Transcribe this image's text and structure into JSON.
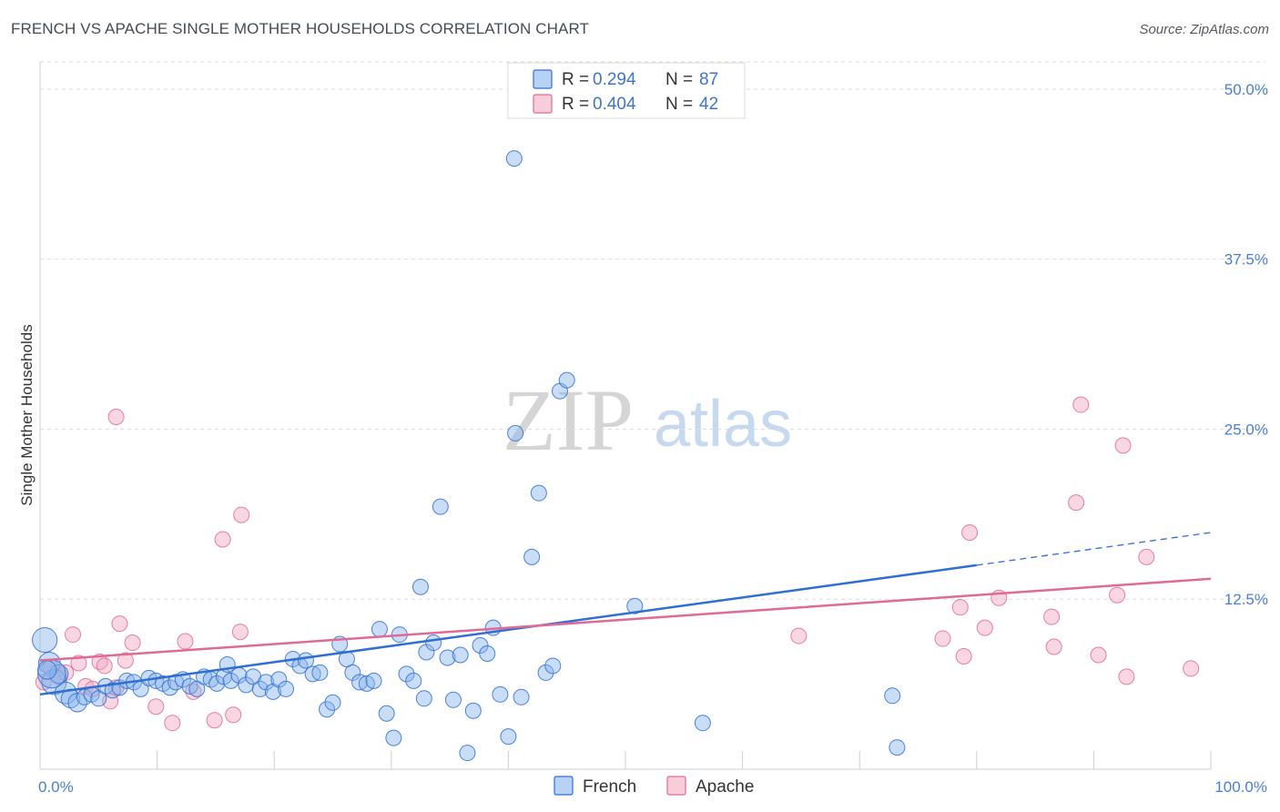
{
  "title": "FRENCH VS APACHE SINGLE MOTHER HOUSEHOLDS CORRELATION CHART",
  "source": "Source: ZipAtlas.com",
  "watermark": {
    "zip": "ZIP",
    "atlas": "atlas"
  },
  "colors": {
    "french": "#8ab4ea",
    "french_line": "#2f6fd1",
    "apache": "#f1a7bf",
    "apache_line": "#e06a96",
    "tick_text": "#4a7fcf"
  },
  "legend": {
    "french": {
      "r_label": "R =",
      "r_value": "0.294",
      "n_label": "N =",
      "n_value": "87"
    },
    "apache": {
      "r_label": "R =",
      "r_value": "0.404",
      "n_label": "N =",
      "n_value": "42"
    }
  },
  "bottom_legend": {
    "french": "French",
    "apache": "Apache"
  },
  "chart_data": {
    "type": "scatter",
    "title": "FRENCH VS APACHE SINGLE MOTHER HOUSEHOLDS CORRELATION CHART",
    "xlabel": "",
    "ylabel": "Single Mother Households",
    "xlim": [
      0,
      100
    ],
    "ylim": [
      0,
      52
    ],
    "x_tick_labels": [
      "0.0%",
      "100.0%"
    ],
    "y_ticks": [
      12.5,
      25.0,
      37.5,
      50.0
    ],
    "y_tick_labels": [
      "12.5%",
      "25.0%",
      "37.5%",
      "50.0%"
    ],
    "grid": true,
    "legend_position": "top-center",
    "series": [
      {
        "name": "French",
        "r": 0.294,
        "n": 87,
        "trend": {
          "x0": 0,
          "y0": 5.5,
          "x1": 80,
          "y1": 15.0,
          "dash_to_x": 100,
          "dash_to_y": 17.4
        },
        "points": [
          {
            "x": 0.4,
            "y": 9.5,
            "s": 1.6
          },
          {
            "x": 0.8,
            "y": 7.8,
            "s": 1.4
          },
          {
            "x": 1.2,
            "y": 6.4,
            "s": 1.6
          },
          {
            "x": 1.6,
            "y": 7.0,
            "s": 1.2
          },
          {
            "x": 2.2,
            "y": 5.6,
            "s": 1.4
          },
          {
            "x": 2.6,
            "y": 5.2,
            "s": 1.2
          },
          {
            "x": 3.2,
            "y": 4.9,
            "s": 1.2
          },
          {
            "x": 3.8,
            "y": 5.3,
            "s": 1.0
          },
          {
            "x": 4.4,
            "y": 5.5,
            "s": 1.0
          },
          {
            "x": 5.0,
            "y": 5.2,
            "s": 1.0
          },
          {
            "x": 5.6,
            "y": 6.1,
            "s": 1.0
          },
          {
            "x": 6.2,
            "y": 5.8,
            "s": 1.0
          },
          {
            "x": 6.8,
            "y": 6.0,
            "s": 1.0
          },
          {
            "x": 7.4,
            "y": 6.5,
            "s": 1.0
          },
          {
            "x": 8.0,
            "y": 6.4,
            "s": 1.0
          },
          {
            "x": 8.6,
            "y": 5.9,
            "s": 1.0
          },
          {
            "x": 9.3,
            "y": 6.7,
            "s": 1.0
          },
          {
            "x": 9.9,
            "y": 6.5,
            "s": 1.0
          },
          {
            "x": 10.5,
            "y": 6.3,
            "s": 1.0
          },
          {
            "x": 11.1,
            "y": 6.0,
            "s": 1.0
          },
          {
            "x": 11.6,
            "y": 6.4,
            "s": 1.0
          },
          {
            "x": 12.2,
            "y": 6.6,
            "s": 1.0
          },
          {
            "x": 12.8,
            "y": 6.1,
            "s": 1.0
          },
          {
            "x": 13.4,
            "y": 5.9,
            "s": 1.0
          },
          {
            "x": 14.0,
            "y": 6.8,
            "s": 1.0
          },
          {
            "x": 14.6,
            "y": 6.6,
            "s": 1.0
          },
          {
            "x": 15.1,
            "y": 6.3,
            "s": 1.0
          },
          {
            "x": 15.7,
            "y": 6.8,
            "s": 1.0
          },
          {
            "x": 16.3,
            "y": 6.5,
            "s": 1.0
          },
          {
            "x": 16.0,
            "y": 7.7,
            "s": 1.0
          },
          {
            "x": 17.0,
            "y": 6.9,
            "s": 1.0
          },
          {
            "x": 17.6,
            "y": 6.2,
            "s": 1.0
          },
          {
            "x": 18.2,
            "y": 6.8,
            "s": 1.0
          },
          {
            "x": 18.8,
            "y": 5.9,
            "s": 1.0
          },
          {
            "x": 19.3,
            "y": 6.4,
            "s": 1.0
          },
          {
            "x": 19.9,
            "y": 5.7,
            "s": 1.0
          },
          {
            "x": 20.4,
            "y": 6.6,
            "s": 1.0
          },
          {
            "x": 21.0,
            "y": 5.9,
            "s": 1.0
          },
          {
            "x": 21.6,
            "y": 8.1,
            "s": 1.0
          },
          {
            "x": 22.2,
            "y": 7.6,
            "s": 1.0
          },
          {
            "x": 22.7,
            "y": 8.0,
            "s": 1.0
          },
          {
            "x": 23.3,
            "y": 7.0,
            "s": 1.0
          },
          {
            "x": 23.9,
            "y": 7.1,
            "s": 1.0
          },
          {
            "x": 24.5,
            "y": 4.4,
            "s": 1.0
          },
          {
            "x": 25.0,
            "y": 4.9,
            "s": 1.0
          },
          {
            "x": 25.6,
            "y": 9.2,
            "s": 1.0
          },
          {
            "x": 26.2,
            "y": 8.1,
            "s": 1.0
          },
          {
            "x": 26.7,
            "y": 7.1,
            "s": 1.0
          },
          {
            "x": 27.3,
            "y": 6.4,
            "s": 1.0
          },
          {
            "x": 27.9,
            "y": 6.3,
            "s": 1.0
          },
          {
            "x": 28.5,
            "y": 6.5,
            "s": 1.0
          },
          {
            "x": 29.0,
            "y": 10.3,
            "s": 1.0
          },
          {
            "x": 29.6,
            "y": 4.1,
            "s": 1.0
          },
          {
            "x": 30.2,
            "y": 2.3,
            "s": 1.0
          },
          {
            "x": 30.7,
            "y": 9.9,
            "s": 1.0
          },
          {
            "x": 31.3,
            "y": 7.0,
            "s": 1.0
          },
          {
            "x": 31.9,
            "y": 6.5,
            "s": 1.0
          },
          {
            "x": 32.5,
            "y": 13.4,
            "s": 1.0
          },
          {
            "x": 33.0,
            "y": 8.6,
            "s": 1.0
          },
          {
            "x": 33.6,
            "y": 9.3,
            "s": 1.0
          },
          {
            "x": 32.8,
            "y": 5.2,
            "s": 1.0
          },
          {
            "x": 34.2,
            "y": 19.3,
            "s": 1.0
          },
          {
            "x": 34.8,
            "y": 8.2,
            "s": 1.0
          },
          {
            "x": 35.3,
            "y": 5.1,
            "s": 1.0
          },
          {
            "x": 35.9,
            "y": 8.4,
            "s": 1.0
          },
          {
            "x": 36.5,
            "y": 1.2,
            "s": 1.0
          },
          {
            "x": 37.0,
            "y": 4.3,
            "s": 1.0
          },
          {
            "x": 37.6,
            "y": 9.1,
            "s": 1.0
          },
          {
            "x": 38.2,
            "y": 8.5,
            "s": 1.0
          },
          {
            "x": 38.7,
            "y": 10.4,
            "s": 1.0
          },
          {
            "x": 39.3,
            "y": 5.5,
            "s": 1.0
          },
          {
            "x": 40.0,
            "y": 2.4,
            "s": 1.0
          },
          {
            "x": 40.6,
            "y": 24.7,
            "s": 1.0
          },
          {
            "x": 41.1,
            "y": 5.3,
            "s": 1.0
          },
          {
            "x": 42.0,
            "y": 15.6,
            "s": 1.0
          },
          {
            "x": 42.6,
            "y": 20.3,
            "s": 1.0
          },
          {
            "x": 43.2,
            "y": 7.1,
            "s": 1.0
          },
          {
            "x": 43.8,
            "y": 7.6,
            "s": 1.0
          },
          {
            "x": 44.4,
            "y": 27.8,
            "s": 1.0
          },
          {
            "x": 45.0,
            "y": 28.6,
            "s": 1.0
          },
          {
            "x": 40.5,
            "y": 44.9,
            "s": 1.0
          },
          {
            "x": 50.8,
            "y": 12.0,
            "s": 1.0
          },
          {
            "x": 56.6,
            "y": 3.4,
            "s": 1.0
          },
          {
            "x": 72.8,
            "y": 5.4,
            "s": 1.0
          },
          {
            "x": 73.2,
            "y": 1.6,
            "s": 1.0
          },
          {
            "x": 1.0,
            "y": 7.0,
            "s": 1.8
          },
          {
            "x": 0.6,
            "y": 7.3,
            "s": 1.2
          }
        ]
      },
      {
        "name": "Apache",
        "r": 0.404,
        "n": 42,
        "trend": {
          "x0": 0,
          "y0": 8.0,
          "x1": 100,
          "y1": 14.0
        },
        "points": [
          {
            "x": 0.3,
            "y": 6.4,
            "s": 1.0
          },
          {
            "x": 0.9,
            "y": 7.5,
            "s": 1.0
          },
          {
            "x": 1.6,
            "y": 6.8,
            "s": 1.0
          },
          {
            "x": 2.2,
            "y": 7.1,
            "s": 1.0
          },
          {
            "x": 2.8,
            "y": 9.9,
            "s": 1.0
          },
          {
            "x": 3.3,
            "y": 7.8,
            "s": 1.0
          },
          {
            "x": 3.9,
            "y": 6.1,
            "s": 1.0
          },
          {
            "x": 4.5,
            "y": 5.9,
            "s": 1.0
          },
          {
            "x": 5.1,
            "y": 7.9,
            "s": 1.0
          },
          {
            "x": 5.5,
            "y": 7.6,
            "s": 1.0
          },
          {
            "x": 6.0,
            "y": 5.0,
            "s": 1.0
          },
          {
            "x": 6.5,
            "y": 6.0,
            "s": 1.0
          },
          {
            "x": 6.5,
            "y": 25.9,
            "s": 1.0
          },
          {
            "x": 6.8,
            "y": 10.7,
            "s": 1.0
          },
          {
            "x": 7.3,
            "y": 8.0,
            "s": 1.0
          },
          {
            "x": 7.9,
            "y": 9.3,
            "s": 1.0
          },
          {
            "x": 9.9,
            "y": 4.6,
            "s": 1.0
          },
          {
            "x": 11.3,
            "y": 3.4,
            "s": 1.0
          },
          {
            "x": 12.4,
            "y": 9.4,
            "s": 1.0
          },
          {
            "x": 13.1,
            "y": 5.7,
            "s": 1.0
          },
          {
            "x": 14.9,
            "y": 3.6,
            "s": 1.0
          },
          {
            "x": 15.6,
            "y": 16.9,
            "s": 1.0
          },
          {
            "x": 16.5,
            "y": 4.0,
            "s": 1.0
          },
          {
            "x": 17.1,
            "y": 10.1,
            "s": 1.0
          },
          {
            "x": 17.2,
            "y": 18.7,
            "s": 1.0
          },
          {
            "x": 64.8,
            "y": 9.8,
            "s": 1.0
          },
          {
            "x": 77.1,
            "y": 9.6,
            "s": 1.0
          },
          {
            "x": 78.6,
            "y": 11.9,
            "s": 1.0
          },
          {
            "x": 78.9,
            "y": 8.3,
            "s": 1.0
          },
          {
            "x": 79.4,
            "y": 17.4,
            "s": 1.0
          },
          {
            "x": 80.7,
            "y": 10.4,
            "s": 1.0
          },
          {
            "x": 81.9,
            "y": 12.6,
            "s": 1.0
          },
          {
            "x": 86.4,
            "y": 11.2,
            "s": 1.0
          },
          {
            "x": 86.6,
            "y": 9.0,
            "s": 1.0
          },
          {
            "x": 88.5,
            "y": 19.6,
            "s": 1.0
          },
          {
            "x": 88.9,
            "y": 26.8,
            "s": 1.0
          },
          {
            "x": 90.4,
            "y": 8.4,
            "s": 1.0
          },
          {
            "x": 92.0,
            "y": 12.8,
            "s": 1.0
          },
          {
            "x": 92.5,
            "y": 23.8,
            "s": 1.0
          },
          {
            "x": 92.8,
            "y": 6.8,
            "s": 1.0
          },
          {
            "x": 94.5,
            "y": 15.6,
            "s": 1.0
          },
          {
            "x": 98.3,
            "y": 7.4,
            "s": 1.0
          }
        ]
      }
    ]
  }
}
